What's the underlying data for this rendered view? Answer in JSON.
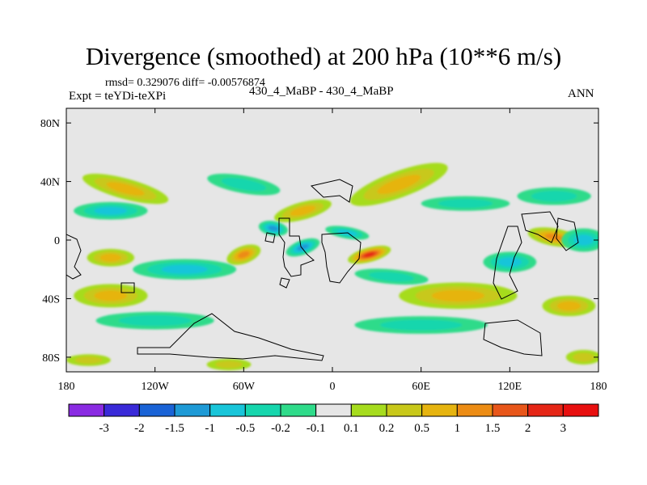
{
  "chart_data": {
    "type": "heatmap",
    "title": "Divergence (smoothed) at 200 hPa (10**6 m/s)",
    "subtitle_left": "rmsd= 0.329076 diff= -0.00576874",
    "experiment_label": "Expt = teYDi-teXPi",
    "case_label": "430_4_MaBP - 430_4_MaBP",
    "season_label": "ANN",
    "xlabel": "",
    "ylabel": "",
    "x_range": [
      -180,
      180
    ],
    "y_range": [
      -90,
      90
    ],
    "x_ticks": [
      {
        "value": -180,
        "label": "180"
      },
      {
        "value": -120,
        "label": "120W"
      },
      {
        "value": -60,
        "label": "60W"
      },
      {
        "value": 0,
        "label": "0"
      },
      {
        "value": 60,
        "label": "60E"
      },
      {
        "value": 120,
        "label": "120E"
      },
      {
        "value": 180,
        "label": "180"
      }
    ],
    "y_ticks": [
      {
        "value": 80,
        "label": "80N"
      },
      {
        "value": 40,
        "label": "40N"
      },
      {
        "value": 0,
        "label": "0"
      },
      {
        "value": -40,
        "label": "40S"
      },
      {
        "value": -80,
        "label": "80S"
      }
    ],
    "colorbar": {
      "labels": [
        "-3",
        "-2",
        "-1.5",
        "-1",
        "-0.5",
        "-0.2",
        "-0.1",
        "0.1",
        "0.2",
        "0.5",
        "1",
        "1.5",
        "2",
        "3"
      ],
      "colors": [
        "#8a2be2",
        "#3a2ad8",
        "#1a63d6",
        "#1e9ad6",
        "#19c5d9",
        "#16d6ad",
        "#2fdb8a",
        "#e6e6e6",
        "#a6dc1e",
        "#c8c81a",
        "#e6b410",
        "#ec8c14",
        "#e8561a",
        "#e52616",
        "#e81010"
      ]
    },
    "field_blobs": [
      {
        "lon": 25,
        "lat": -10,
        "rx": 15,
        "ry": 5,
        "value": 2.6,
        "rot": -15
      },
      {
        "lon": -60,
        "lat": -10,
        "rx": 12,
        "ry": 6,
        "value": 1.1,
        "rot": -20
      },
      {
        "lon": -150,
        "lat": -12,
        "rx": 16,
        "ry": 6,
        "value": 1.0,
        "rot": 0
      },
      {
        "lon": 85,
        "lat": -38,
        "rx": 40,
        "ry": 9,
        "value": 1.0,
        "rot": 0
      },
      {
        "lon": 150,
        "lat": 2,
        "rx": 18,
        "ry": 6,
        "value": 1.2,
        "rot": 10
      },
      {
        "lon": 45,
        "lat": 38,
        "rx": 35,
        "ry": 9,
        "value": 0.7,
        "rot": -20
      },
      {
        "lon": -140,
        "lat": 35,
        "rx": 30,
        "ry": 7,
        "value": 0.6,
        "rot": 15
      },
      {
        "lon": -150,
        "lat": -38,
        "rx": 25,
        "ry": 8,
        "value": 0.6,
        "rot": 0
      },
      {
        "lon": 160,
        "lat": -45,
        "rx": 18,
        "ry": 7,
        "value": 0.9,
        "rot": 0
      },
      {
        "lon": -20,
        "lat": 20,
        "rx": 20,
        "ry": 6,
        "value": 0.8,
        "rot": -15
      },
      {
        "lon": -20,
        "lat": -5,
        "rx": 12,
        "ry": 5,
        "value": -1.1,
        "rot": -20
      },
      {
        "lon": -40,
        "lat": 8,
        "rx": 10,
        "ry": 5,
        "value": -1.2,
        "rot": 10
      },
      {
        "lon": 10,
        "lat": 5,
        "rx": 15,
        "ry": 4,
        "value": -0.6,
        "rot": 10
      },
      {
        "lon": -100,
        "lat": -20,
        "rx": 35,
        "ry": 7,
        "value": -0.5,
        "rot": 0
      },
      {
        "lon": 120,
        "lat": -15,
        "rx": 18,
        "ry": 7,
        "value": -0.6,
        "rot": 0
      },
      {
        "lon": 170,
        "lat": 0,
        "rx": 15,
        "ry": 8,
        "value": -0.7,
        "rot": 0
      },
      {
        "lon": -150,
        "lat": 20,
        "rx": 25,
        "ry": 6,
        "value": -0.5,
        "rot": 0
      },
      {
        "lon": 150,
        "lat": 30,
        "rx": 25,
        "ry": 6,
        "value": -0.4,
        "rot": 0
      },
      {
        "lon": -60,
        "lat": 38,
        "rx": 25,
        "ry": 6,
        "value": -0.4,
        "rot": 10
      },
      {
        "lon": 90,
        "lat": 25,
        "rx": 30,
        "ry": 5,
        "value": -0.3,
        "rot": 0
      },
      {
        "lon": 40,
        "lat": -25,
        "rx": 25,
        "ry": 5,
        "value": -0.4,
        "rot": 5
      },
      {
        "lon": -120,
        "lat": -55,
        "rx": 40,
        "ry": 6,
        "value": -0.3,
        "rot": 0
      },
      {
        "lon": 60,
        "lat": -58,
        "rx": 45,
        "ry": 6,
        "value": -0.3,
        "rot": 0
      },
      {
        "lon": -165,
        "lat": -82,
        "rx": 15,
        "ry": 4,
        "value": 0.3,
        "rot": 0
      },
      {
        "lon": -70,
        "lat": -85,
        "rx": 15,
        "ry": 4,
        "value": 0.3,
        "rot": 0
      },
      {
        "lon": 170,
        "lat": -80,
        "rx": 12,
        "ry": 5,
        "value": 0.3,
        "rot": 0
      }
    ]
  }
}
